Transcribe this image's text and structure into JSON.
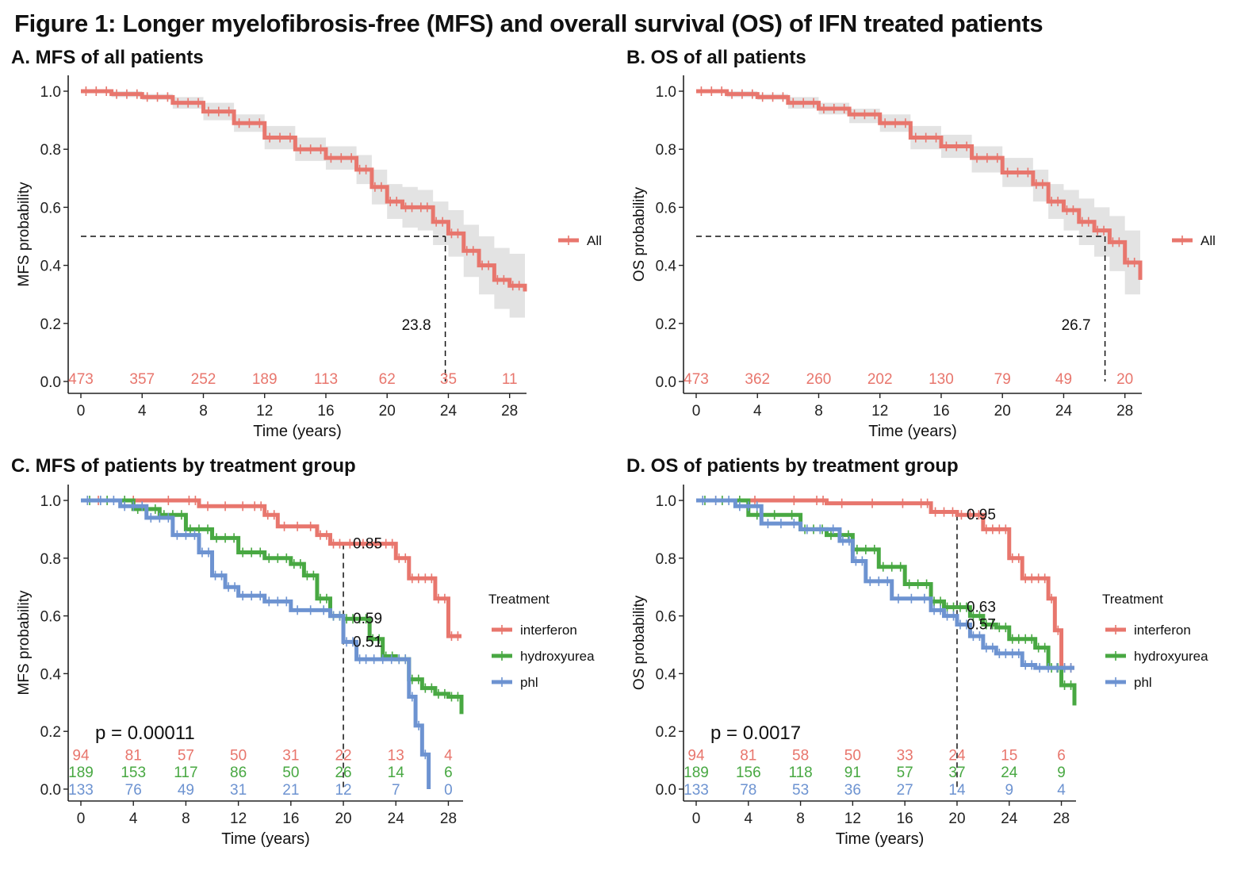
{
  "figure_title": "Figure 1: Longer myelofibrosis-free (MFS) and overall survival (OS) of IFN treated patients",
  "colors": {
    "interferon": "#e8766d",
    "hydroxyurea": "#48a842",
    "phl": "#6d93d1",
    "all": "#e8766d",
    "ci": "#e3e3e3",
    "axis": "#222222"
  },
  "chart_data": [
    {
      "id": "A",
      "type": "line",
      "title": "A. MFS of all patients",
      "xlabel": "Time (years)",
      "ylabel": "MFS probability",
      "xlim": [
        0,
        29
      ],
      "ylim": [
        0,
        1
      ],
      "xticks": [
        0,
        4,
        8,
        12,
        16,
        20,
        24,
        28
      ],
      "yticks": [
        "0.0",
        "0.2",
        "0.4",
        "0.6",
        "0.8",
        "1.0"
      ],
      "legend_title": "",
      "series": [
        {
          "name": "All",
          "color_key": "all",
          "x": [
            0,
            2,
            4,
            6,
            8,
            10,
            12,
            14,
            16,
            18,
            19,
            20,
            21,
            22,
            23,
            24,
            25,
            26,
            27,
            28,
            29
          ],
          "y": [
            1.0,
            0.99,
            0.98,
            0.96,
            0.93,
            0.89,
            0.84,
            0.8,
            0.77,
            0.73,
            0.67,
            0.62,
            0.6,
            0.6,
            0.55,
            0.51,
            0.45,
            0.4,
            0.35,
            0.33,
            0.31
          ],
          "ci_upper": [
            1.0,
            1.0,
            0.99,
            0.98,
            0.96,
            0.92,
            0.88,
            0.84,
            0.81,
            0.78,
            0.73,
            0.68,
            0.67,
            0.66,
            0.62,
            0.59,
            0.54,
            0.5,
            0.46,
            0.44,
            0.43
          ],
          "ci_lower": [
            1.0,
            0.98,
            0.97,
            0.94,
            0.9,
            0.86,
            0.8,
            0.76,
            0.73,
            0.68,
            0.61,
            0.56,
            0.53,
            0.52,
            0.47,
            0.43,
            0.36,
            0.3,
            0.25,
            0.22,
            0.19
          ]
        }
      ],
      "median": {
        "x": 23.8,
        "label": "23.8"
      },
      "risk_table": [
        {
          "color_key": "all",
          "counts": [
            "473",
            "357",
            "252",
            "189",
            "113",
            "62",
            "35",
            "11"
          ]
        }
      ]
    },
    {
      "id": "B",
      "type": "line",
      "title": "B. OS of all patients",
      "xlabel": "Time (years)",
      "ylabel": "OS probability",
      "xlim": [
        0,
        29
      ],
      "ylim": [
        0,
        1
      ],
      "xticks": [
        0,
        4,
        8,
        12,
        16,
        20,
        24,
        28
      ],
      "yticks": [
        "0.0",
        "0.2",
        "0.4",
        "0.6",
        "0.8",
        "1.0"
      ],
      "legend_title": "",
      "series": [
        {
          "name": "All",
          "color_key": "all",
          "x": [
            0,
            2,
            4,
            6,
            8,
            10,
            12,
            14,
            16,
            18,
            20,
            22,
            23,
            24,
            25,
            26,
            27,
            28,
            29
          ],
          "y": [
            1.0,
            0.99,
            0.98,
            0.96,
            0.94,
            0.92,
            0.89,
            0.84,
            0.81,
            0.77,
            0.72,
            0.68,
            0.62,
            0.59,
            0.55,
            0.52,
            0.48,
            0.41,
            0.35
          ],
          "ci_upper": [
            1.0,
            1.0,
            0.99,
            0.98,
            0.96,
            0.94,
            0.92,
            0.88,
            0.85,
            0.81,
            0.77,
            0.73,
            0.68,
            0.66,
            0.63,
            0.6,
            0.57,
            0.52,
            0.47
          ],
          "ci_lower": [
            1.0,
            0.98,
            0.97,
            0.94,
            0.92,
            0.89,
            0.86,
            0.8,
            0.77,
            0.72,
            0.67,
            0.62,
            0.56,
            0.52,
            0.47,
            0.43,
            0.38,
            0.3,
            0.25
          ]
        }
      ],
      "median": {
        "x": 26.7,
        "label": "26.7"
      },
      "risk_table": [
        {
          "color_key": "all",
          "counts": [
            "473",
            "362",
            "260",
            "202",
            "130",
            "79",
            "49",
            "20"
          ]
        }
      ]
    },
    {
      "id": "C",
      "type": "line",
      "title": "C. MFS of patients by treatment group",
      "xlabel": "Time (years)",
      "ylabel": "MFS probability",
      "xlim": [
        0,
        29
      ],
      "ylim": [
        0,
        1
      ],
      "xticks": [
        0,
        4,
        8,
        12,
        16,
        20,
        24,
        28
      ],
      "yticks": [
        "0.0",
        "0.2",
        "0.4",
        "0.6",
        "0.8",
        "1.0"
      ],
      "legend_title": "Treatment",
      "series": [
        {
          "name": "interferon",
          "color_key": "interferon",
          "x": [
            0,
            8,
            9,
            13,
            14,
            15,
            18,
            19,
            20,
            23,
            24,
            25,
            26,
            27,
            28,
            29
          ],
          "y": [
            1.0,
            1.0,
            0.98,
            0.98,
            0.95,
            0.91,
            0.88,
            0.85,
            0.85,
            0.85,
            0.8,
            0.73,
            0.73,
            0.66,
            0.53,
            0.53
          ]
        },
        {
          "name": "hydroxyurea",
          "color_key": "hydroxyurea",
          "x": [
            0,
            4,
            6,
            8,
            10,
            12,
            14,
            16,
            17,
            18,
            19,
            20,
            21,
            22,
            23,
            24,
            25,
            26,
            27,
            28,
            29
          ],
          "y": [
            1.0,
            0.97,
            0.95,
            0.9,
            0.87,
            0.82,
            0.8,
            0.78,
            0.74,
            0.66,
            0.6,
            0.59,
            0.59,
            0.52,
            0.46,
            0.45,
            0.38,
            0.35,
            0.33,
            0.32,
            0.26
          ]
        },
        {
          "name": "phl",
          "color_key": "phl",
          "x": [
            0,
            3,
            5,
            7,
            9,
            10,
            11,
            12,
            14,
            16,
            19,
            20,
            21,
            22,
            24,
            25,
            25.5,
            26,
            26.5
          ],
          "y": [
            1.0,
            0.98,
            0.94,
            0.88,
            0.82,
            0.74,
            0.7,
            0.67,
            0.65,
            0.62,
            0.6,
            0.51,
            0.45,
            0.45,
            0.45,
            0.32,
            0.22,
            0.12,
            0.0
          ]
        }
      ],
      "annotations": [
        {
          "x": 20,
          "y": 0.85,
          "label": "0.85"
        },
        {
          "x": 20,
          "y": 0.59,
          "label": "0.59"
        },
        {
          "x": 20,
          "y": 0.51,
          "label": "0.51"
        }
      ],
      "vline_x": 20,
      "pvalue": "p = 0.00011",
      "risk_table": [
        {
          "color_key": "interferon",
          "counts": [
            "94",
            "81",
            "57",
            "50",
            "31",
            "22",
            "13",
            "4"
          ]
        },
        {
          "color_key": "hydroxyurea",
          "counts": [
            "189",
            "153",
            "117",
            "86",
            "50",
            "26",
            "14",
            "6"
          ]
        },
        {
          "color_key": "phl",
          "counts": [
            "133",
            "76",
            "49",
            "31",
            "21",
            "12",
            "7",
            "0"
          ]
        }
      ]
    },
    {
      "id": "D",
      "type": "line",
      "title": "D. OS of patients by treatment group",
      "xlabel": "Time (years)",
      "ylabel": "OS probability",
      "xlim": [
        0,
        29
      ],
      "ylim": [
        0,
        1
      ],
      "xticks": [
        0,
        4,
        8,
        12,
        16,
        20,
        24,
        28
      ],
      "yticks": [
        "0.0",
        "0.2",
        "0.4",
        "0.6",
        "0.8",
        "1.0"
      ],
      "legend_title": "Treatment",
      "series": [
        {
          "name": "interferon",
          "color_key": "interferon",
          "x": [
            0,
            9,
            10,
            17,
            18,
            20,
            22,
            23,
            24,
            25,
            26,
            27,
            27.5,
            28,
            29
          ],
          "y": [
            1.0,
            1.0,
            0.99,
            0.99,
            0.96,
            0.95,
            0.9,
            0.9,
            0.8,
            0.73,
            0.73,
            0.66,
            0.55,
            0.42,
            0.42
          ]
        },
        {
          "name": "hydroxyurea",
          "color_key": "hydroxyurea",
          "x": [
            0,
            4,
            8,
            10,
            12,
            14,
            16,
            18,
            19,
            20,
            21,
            22,
            23,
            24,
            25,
            26,
            27,
            28,
            29
          ],
          "y": [
            1.0,
            0.95,
            0.9,
            0.88,
            0.83,
            0.77,
            0.71,
            0.65,
            0.63,
            0.63,
            0.6,
            0.57,
            0.56,
            0.52,
            0.52,
            0.49,
            0.42,
            0.36,
            0.29
          ]
        },
        {
          "name": "phl",
          "color_key": "phl",
          "x": [
            0,
            3,
            5,
            8,
            11,
            12,
            13,
            15,
            18,
            19,
            20,
            21,
            22,
            23,
            24,
            25,
            26,
            28,
            29
          ],
          "y": [
            1.0,
            0.98,
            0.92,
            0.9,
            0.86,
            0.79,
            0.72,
            0.66,
            0.62,
            0.6,
            0.57,
            0.53,
            0.49,
            0.47,
            0.47,
            0.43,
            0.42,
            0.42,
            0.42
          ]
        }
      ],
      "annotations": [
        {
          "x": 20,
          "y": 0.95,
          "label": "0.95"
        },
        {
          "x": 20,
          "y": 0.63,
          "label": "0.63"
        },
        {
          "x": 20,
          "y": 0.57,
          "label": "0.57"
        }
      ],
      "vline_x": 20,
      "pvalue": "p = 0.0017",
      "risk_table": [
        {
          "color_key": "interferon",
          "counts": [
            "94",
            "81",
            "58",
            "50",
            "33",
            "24",
            "15",
            "6"
          ]
        },
        {
          "color_key": "hydroxyurea",
          "counts": [
            "189",
            "156",
            "118",
            "91",
            "57",
            "37",
            "24",
            "9"
          ]
        },
        {
          "color_key": "phl",
          "counts": [
            "133",
            "78",
            "53",
            "36",
            "27",
            "14",
            "9",
            "4"
          ]
        }
      ]
    }
  ]
}
